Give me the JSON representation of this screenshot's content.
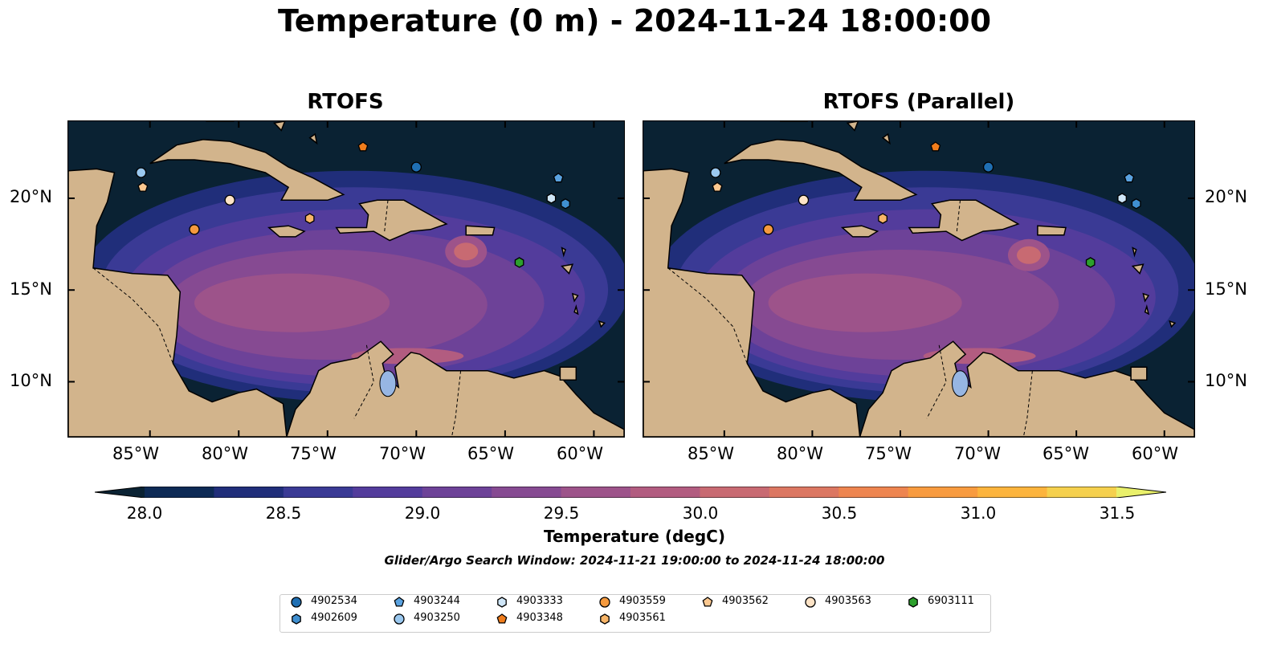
{
  "title": "Temperature (0 m) - 2024-11-24 18:00:00",
  "panels": [
    {
      "title": "RTOFS"
    },
    {
      "title": "RTOFS (Parallel)"
    }
  ],
  "axes": {
    "lon_ticks": [
      "85°W",
      "80°W",
      "75°W",
      "70°W",
      "65°W",
      "60°W"
    ],
    "lat_ticks": [
      "20°N",
      "15°N",
      "10°N"
    ]
  },
  "colorbar": {
    "title": "Temperature (degC)",
    "tick_labels": [
      "28.0",
      "28.5",
      "29.0",
      "29.5",
      "30.0",
      "30.5",
      "31.0",
      "31.5"
    ],
    "min": 28.0,
    "max": 31.5,
    "colors": [
      "#0d2a55",
      "#202e7a",
      "#3a3a95",
      "#533c9c",
      "#6d4298",
      "#864a92",
      "#9d538a",
      "#b25c80",
      "#c86a72",
      "#dc7762",
      "#ee8550",
      "#f89b3f",
      "#fcb43d",
      "#f5d04d",
      "#e9f06b"
    ],
    "under_color": "#0a2233",
    "over_color": "#e9f06b"
  },
  "search_window": "Glider/Argo Search Window: 2024-11-21 19:00:00 to 2024-11-24 18:00:00",
  "legend": [
    {
      "label": "4902534",
      "marker": "circle",
      "color": "#1f6fb3"
    },
    {
      "label": "4902609",
      "marker": "hexagon",
      "color": "#3f8fd0"
    },
    {
      "label": "4903244",
      "marker": "pentagon",
      "color": "#5aa2e0"
    },
    {
      "label": "4903250",
      "marker": "circle",
      "color": "#9ac8ef"
    },
    {
      "label": "4903333",
      "marker": "hexagon",
      "color": "#cfe6f8"
    },
    {
      "label": "4903348",
      "marker": "pentagon",
      "color": "#f07d1c"
    },
    {
      "label": "4903559",
      "marker": "circle",
      "color": "#f59a3e"
    },
    {
      "label": "4903561",
      "marker": "hexagon",
      "color": "#f8b568"
    },
    {
      "label": "4903562",
      "marker": "pentagon",
      "color": "#fbc890"
    },
    {
      "label": "4903563",
      "marker": "circle",
      "color": "#fde3c6"
    },
    {
      "label": "6903111",
      "marker": "hexagon",
      "color": "#2ca02c"
    }
  ],
  "floats": [
    {
      "id": "4902534",
      "lon": -70.0,
      "lat": 21.7
    },
    {
      "id": "4903244",
      "lon": -62.0,
      "lat": 21.1
    },
    {
      "id": "4903333",
      "lon": -62.4,
      "lat": 20.0
    },
    {
      "id": "4902609",
      "lon": -61.6,
      "lat": 19.7
    },
    {
      "id": "4903250",
      "lon": -85.5,
      "lat": 21.4
    },
    {
      "id": "4903562",
      "lon": -85.4,
      "lat": 20.6
    },
    {
      "id": "4903563",
      "lon": -80.5,
      "lat": 19.9
    },
    {
      "id": "4903559",
      "lon": -82.5,
      "lat": 18.3
    },
    {
      "id": "4903561",
      "lon": -76.0,
      "lat": 18.9
    },
    {
      "id": "4903348",
      "lon": -73.0,
      "lat": 22.8
    },
    {
      "id": "6903111",
      "lon": -64.2,
      "lat": 16.5
    }
  ]
}
